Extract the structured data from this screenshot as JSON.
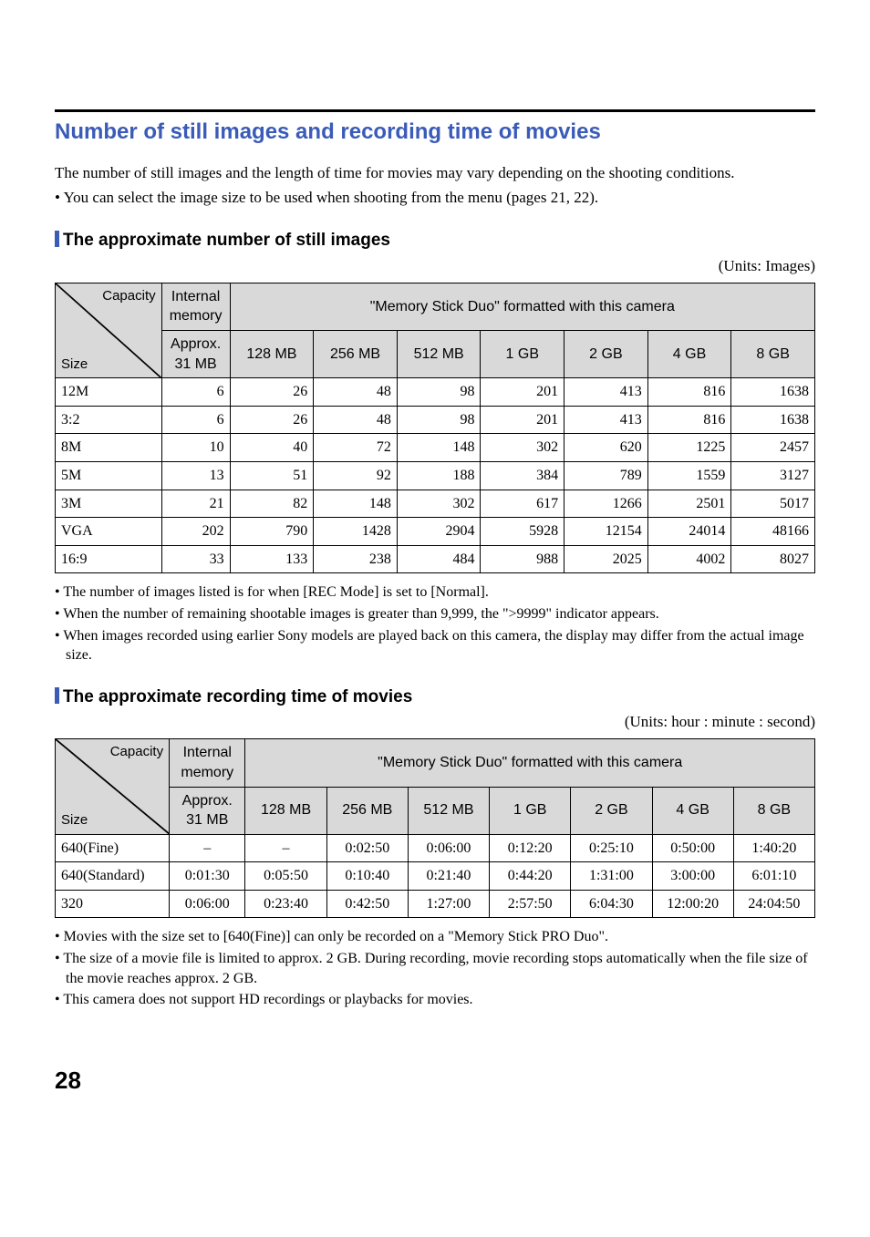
{
  "pageNumber": "28",
  "sectionTitle": "Number of still images and recording time of movies",
  "intro": "The number of still images and the length of time for movies may vary depending on the shooting conditions.",
  "introBullet": "You can select the image size to be used when shooting from the menu (pages 21, 22).",
  "stills": {
    "heading": "The approximate number of still images",
    "units": "(Units: Images)",
    "diag": {
      "capacity": "Capacity",
      "size": "Size"
    },
    "colInternalHeader": "Internal memory",
    "colMemoryStickHeader": "\"Memory Stick Duo\" formatted with this camera",
    "internalSub": "Approx. 31 MB",
    "capacities": [
      "128 MB",
      "256 MB",
      "512 MB",
      "1 GB",
      "2 GB",
      "4 GB",
      "8 GB"
    ],
    "rows": [
      {
        "label": "12M",
        "values": [
          "6",
          "26",
          "48",
          "98",
          "201",
          "413",
          "816",
          "1638"
        ]
      },
      {
        "label": "3:2",
        "values": [
          "6",
          "26",
          "48",
          "98",
          "201",
          "413",
          "816",
          "1638"
        ]
      },
      {
        "label": "8M",
        "values": [
          "10",
          "40",
          "72",
          "148",
          "302",
          "620",
          "1225",
          "2457"
        ]
      },
      {
        "label": "5M",
        "values": [
          "13",
          "51",
          "92",
          "188",
          "384",
          "789",
          "1559",
          "3127"
        ]
      },
      {
        "label": "3M",
        "values": [
          "21",
          "82",
          "148",
          "302",
          "617",
          "1266",
          "2501",
          "5017"
        ]
      },
      {
        "label": "VGA",
        "values": [
          "202",
          "790",
          "1428",
          "2904",
          "5928",
          "12154",
          "24014",
          "48166"
        ]
      },
      {
        "label": "16:9",
        "values": [
          "33",
          "133",
          "238",
          "484",
          "988",
          "2025",
          "4002",
          "8027"
        ]
      }
    ],
    "notes": [
      "The number of images listed is for when [REC Mode] is set to [Normal].",
      "When the number of remaining shootable images is greater than 9,999, the \">9999\" indicator appears.",
      "When images recorded using earlier Sony models are played back on this camera, the display may differ from the actual image size."
    ]
  },
  "movies": {
    "heading": "The approximate recording time of movies",
    "units": "(Units: hour : minute : second)",
    "diag": {
      "capacity": "Capacity",
      "size": "Size"
    },
    "colInternalHeader": "Internal memory",
    "colMemoryStickHeader": "\"Memory Stick Duo\" formatted with this camera",
    "internalSub": "Approx. 31 MB",
    "capacities": [
      "128 MB",
      "256 MB",
      "512 MB",
      "1 GB",
      "2 GB",
      "4 GB",
      "8 GB"
    ],
    "rows": [
      {
        "label": "640(Fine)",
        "values": [
          "–",
          "–",
          "0:02:50",
          "0:06:00",
          "0:12:20",
          "0:25:10",
          "0:50:00",
          "1:40:20"
        ]
      },
      {
        "label": "640(Standard)",
        "values": [
          "0:01:30",
          "0:05:50",
          "0:10:40",
          "0:21:40",
          "0:44:20",
          "1:31:00",
          "3:00:00",
          "6:01:10"
        ]
      },
      {
        "label": "320",
        "values": [
          "0:06:00",
          "0:23:40",
          "0:42:50",
          "1:27:00",
          "2:57:50",
          "6:04:30",
          "12:00:20",
          "24:04:50"
        ]
      }
    ],
    "notes": [
      "Movies with the size set to [640(Fine)] can only be recorded on a \"Memory Stick PRO Duo\".",
      "The size of a movie file is limited to approx. 2 GB. During recording, movie recording stops automatically when the file size of the movie reaches approx. 2 GB.",
      "This camera does not support HD recordings or playbacks for movies."
    ]
  },
  "style": {
    "accent": "#3a5bb8",
    "headerBg": "#d9d9d9",
    "colWidths": {
      "stillsLabel": "14%",
      "stillsInternal": "9%",
      "stillsCap": "11%",
      "moviesLabel": "15%",
      "moviesInternal": "10%",
      "moviesCap": "10.7%"
    }
  }
}
